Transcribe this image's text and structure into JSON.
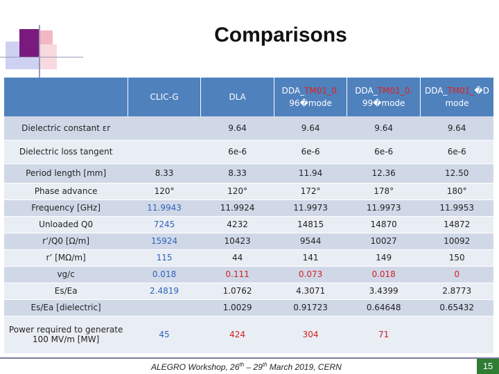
{
  "slide": {
    "title": "Comparisons",
    "page_number": "15"
  },
  "table": {
    "headers": [
      {
        "line1": "",
        "line2": ""
      },
      {
        "line1": "CLIC-G",
        "line2": ""
      },
      {
        "line1": "DLA",
        "line2": ""
      },
      {
        "line1": "DDA_TM01_0.96�mode",
        "red_part": "TM01_0.",
        "prefix": "DDA_",
        "suffix": "96�mode"
      },
      {
        "line1": "DDA_TM01_0.99�mode",
        "red_part": "TM01_0.",
        "prefix": "DDA_",
        "suffix": "99�mode"
      },
      {
        "line1": "DDA_TM01_�mode",
        "red_part": "TM01_",
        "prefix": "DDA_",
        "suffix": "mode"
      }
    ],
    "header_cells": {
      "h1": "CLIC-G",
      "h2": "DLA",
      "h3_prefix": "DDA_",
      "h3_red": "TM01_0.",
      "h3_line2": "96�mode",
      "h4_prefix": "DDA_",
      "h4_red": "TM01_0.",
      "h4_line2": "99�mode",
      "h5_prefix": "DDA_",
      "h5_red": "TM01_",
      "h5_tail": "�D",
      "h5_line2": "mode"
    },
    "rows": [
      {
        "label": "Dielectric constant εr",
        "cells": [
          "",
          "9.64",
          "9.64",
          "9.64",
          "9.64"
        ]
      },
      {
        "label": "Dielectric loss tangent",
        "cells": [
          "",
          "6e-6",
          "6e-6",
          "6e-6",
          "6e-6"
        ]
      },
      {
        "label": "Period length [mm]",
        "cells": [
          "8.33",
          "8.33",
          "11.94",
          "12.36",
          "12.50"
        ]
      },
      {
        "label": "Phase advance",
        "cells": [
          "120°",
          "120°",
          "172°",
          "178°",
          "180°"
        ]
      },
      {
        "label": "Frequency [GHz]",
        "cells": [
          "11.9943",
          "11.9924",
          "11.9973",
          "11.9973",
          "11.9953"
        ]
      },
      {
        "label": "Unloaded Q0",
        "cells": [
          "7245",
          "4232",
          "14815",
          "14870",
          "14872"
        ]
      },
      {
        "label": "r’/Q0 [Ω/m]",
        "cells": [
          "15924",
          "10423",
          "9544",
          "10027",
          "10092"
        ]
      },
      {
        "label": "r’ [MΩ/m]",
        "cells": [
          "115",
          "44",
          "141",
          "149",
          "150"
        ]
      },
      {
        "label": "vg/c",
        "cells": [
          "0.018",
          "0.111",
          "0.073",
          "0.018",
          "0"
        ]
      },
      {
        "label": "Es/Ea",
        "cells": [
          "2.4819",
          "1.0762",
          "4.3071",
          "3.4399",
          "2.8773"
        ]
      },
      {
        "label": "Es/Ea [dielectric]",
        "cells": [
          "",
          "1.0029",
          "0.91723",
          "0.64648",
          "0.65432"
        ]
      },
      {
        "label": "Power required to generate 100 MV/m [MW]",
        "cells": [
          "45",
          "424",
          "304",
          "71",
          ""
        ]
      }
    ]
  },
  "footer": {
    "text_a": "ALEGRO Workshop, 26",
    "sup_a": "th",
    "text_b": " – 29",
    "sup_b": "th",
    "text_c": " March 2019, CERN"
  },
  "colors": {
    "header_bg": "#4f81bd",
    "row_odd": "#d0d8e8",
    "row_even": "#e9edf4",
    "blue_value": "#2e64b8",
    "red_value": "#d01f1f",
    "page_badge": "#2e7d32"
  }
}
